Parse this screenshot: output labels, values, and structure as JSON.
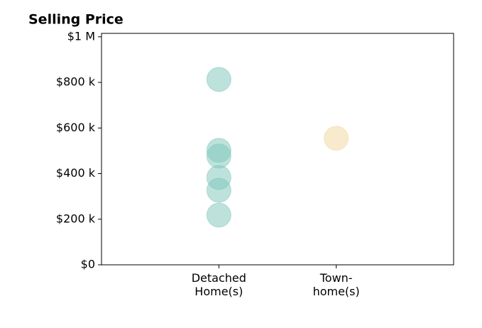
{
  "chart_data": {
    "type": "strip",
    "title": "Selling Price",
    "categories": [
      "Detached\nHome(s)",
      "Town-\nhome(s)"
    ],
    "series": [
      {
        "color": "#7cc6b9",
        "values": [
          813000,
          502000,
          477000,
          383000,
          327000,
          218000
        ]
      },
      {
        "color": "#f2d59c",
        "values": [
          555000
        ]
      }
    ],
    "alpha": 0.5,
    "ylim": [
      0,
      1015000
    ],
    "yticks": [
      {
        "value": 0,
        "label": "$0"
      },
      {
        "value": 200000,
        "label": "$200 k"
      },
      {
        "value": 400000,
        "label": "$400 k"
      },
      {
        "value": 600000,
        "label": "$600 k"
      },
      {
        "value": 800000,
        "label": "$800 k"
      },
      {
        "value": 1000000,
        "label": "$1 M"
      }
    ],
    "grid": false
  }
}
